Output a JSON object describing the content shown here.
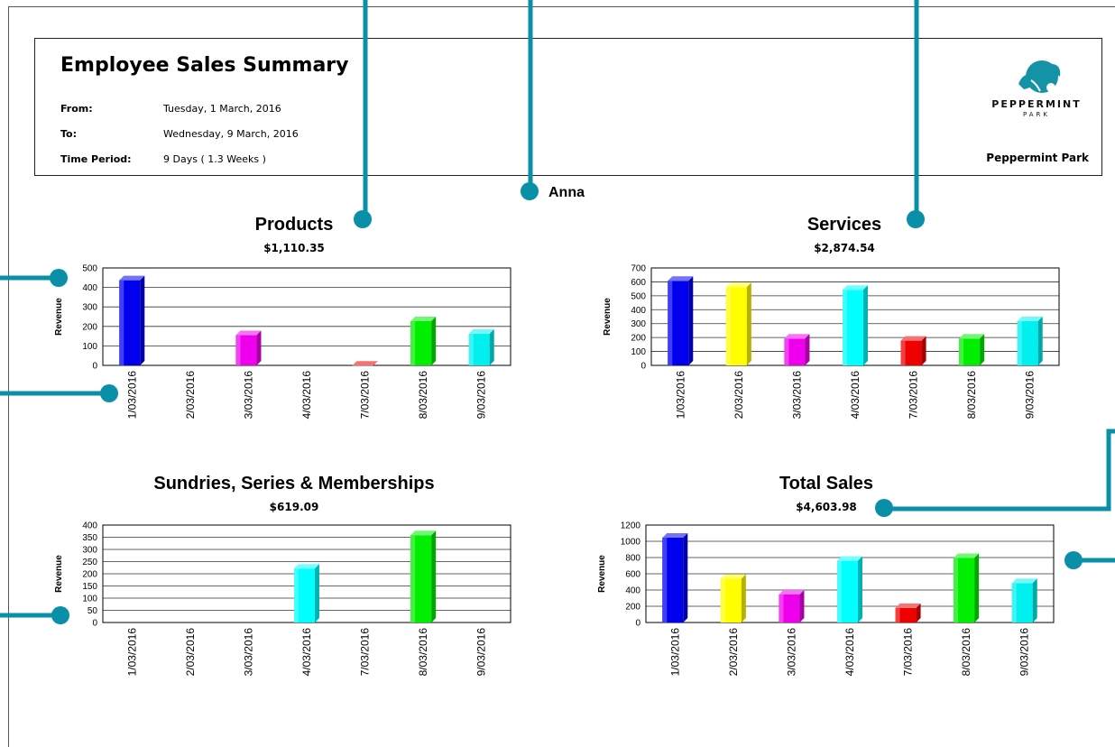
{
  "header": {
    "title": "Employee Sales Summary",
    "from_label": "From:",
    "from_value": "Tuesday, 1 March, 2016",
    "to_label": "To:",
    "to_value": "Wednesday, 9 March, 2016",
    "period_label": "Time Period:",
    "period_value": "9 Days ( 1.3 Weeks )",
    "company_name": "Peppermint Park",
    "logo_text_1": "PEPPERMINT",
    "logo_text_2": "PARK"
  },
  "employee_name": "Anna",
  "colors": {
    "callout": "#0a8fa8"
  },
  "chart_data": [
    {
      "type": "bar",
      "title": "Products",
      "subtitle": "$1,110.35",
      "ylabel": "Revenue",
      "categories": [
        "1/03/2016",
        "2/03/2016",
        "3/03/2016",
        "4/03/2016",
        "7/03/2016",
        "8/03/2016",
        "9/03/2016"
      ],
      "values": [
        460,
        0,
        178,
        0,
        22,
        250,
        185
      ],
      "colors": [
        "#0000ee",
        "#ffff00",
        "#ee00ee",
        "#00ffff",
        "#ee0000",
        "#00ee00",
        "#00f0f0"
      ],
      "ylim": [
        0,
        500
      ],
      "yticks": [
        0,
        100,
        200,
        300,
        400,
        500
      ],
      "grid": true
    },
    {
      "type": "bar",
      "title": "Services",
      "subtitle": "$2,874.54",
      "ylabel": "Revenue",
      "categories": [
        "1/03/2016",
        "2/03/2016",
        "3/03/2016",
        "4/03/2016",
        "7/03/2016",
        "8/03/2016",
        "9/03/2016"
      ],
      "values": [
        640,
        595,
        225,
        575,
        210,
        225,
        350
      ],
      "colors": [
        "#0000ee",
        "#ffff00",
        "#ee00ee",
        "#00ffff",
        "#ee0000",
        "#00ee00",
        "#00f0f0"
      ],
      "ylim": [
        0,
        700
      ],
      "yticks": [
        0,
        100,
        200,
        300,
        400,
        500,
        600,
        700
      ],
      "grid": true
    },
    {
      "type": "bar",
      "title": "Sundries, Series & Memberships",
      "subtitle": "$619.09",
      "ylabel": "Revenue",
      "categories": [
        "1/03/2016",
        "2/03/2016",
        "3/03/2016",
        "4/03/2016",
        "7/03/2016",
        "8/03/2016",
        "9/03/2016"
      ],
      "values": [
        0,
        0,
        0,
        240,
        0,
        377,
        0
      ],
      "colors": [
        "#0000ee",
        "#ffff00",
        "#ee00ee",
        "#00ffff",
        "#ee0000",
        "#00ee00",
        "#00f0f0"
      ],
      "ylim": [
        0,
        400
      ],
      "yticks": [
        0,
        50,
        100,
        150,
        200,
        250,
        300,
        350,
        400
      ],
      "grid": true
    },
    {
      "type": "bar",
      "title": "Total Sales",
      "subtitle": "$4,603.98",
      "ylabel": "Revenue",
      "categories": [
        "1/03/2016",
        "2/03/2016",
        "3/03/2016",
        "4/03/2016",
        "7/03/2016",
        "8/03/2016",
        "9/03/2016"
      ],
      "values": [
        1100,
        595,
        400,
        815,
        235,
        850,
        540
      ],
      "colors": [
        "#0000ee",
        "#ffff00",
        "#ee00ee",
        "#00ffff",
        "#ee0000",
        "#00ee00",
        "#00f0f0"
      ],
      "ylim": [
        0,
        1200
      ],
      "yticks": [
        0,
        200,
        400,
        600,
        800,
        1000,
        1200
      ],
      "grid": true
    }
  ]
}
